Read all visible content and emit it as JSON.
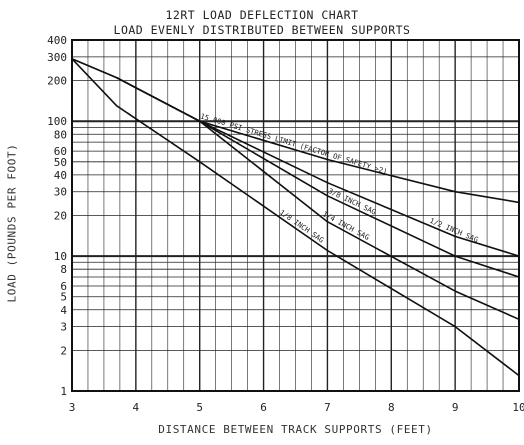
{
  "chart_data": {
    "type": "line",
    "title": "12RT LOAD DEFLECTION CHART",
    "subtitle": "LOAD EVENLY DISTRIBUTED BETWEEN SUPPORTS",
    "xlabel": "DISTANCE BETWEEN TRACK SUPPORTS (FEET)",
    "ylabel": "LOAD (POUNDS PER FOOT)",
    "x_scale": "linear",
    "y_scale": "log",
    "xlim": [
      3,
      10
    ],
    "ylim": [
      1,
      400
    ],
    "x_ticks": [
      "3",
      "4",
      "5",
      "6",
      "7",
      "8",
      "9",
      "10"
    ],
    "y_ticks": [
      {
        "value": 400,
        "label": "400"
      },
      {
        "value": 300,
        "label": "300"
      },
      {
        "value": 200,
        "label": "200"
      },
      {
        "value": 100,
        "label": "100"
      },
      {
        "value": 80,
        "label": "80"
      },
      {
        "value": 60,
        "label": "60"
      },
      {
        "value": 50,
        "label": "50"
      },
      {
        "value": 40,
        "label": "40"
      },
      {
        "value": 30,
        "label": "30"
      },
      {
        "value": 20,
        "label": "20"
      },
      {
        "value": 10,
        "label": "10"
      },
      {
        "value": 8,
        "label": "8"
      },
      {
        "value": 6,
        "label": "6"
      },
      {
        "value": 5,
        "label": "5"
      },
      {
        "value": 4,
        "label": "4"
      },
      {
        "value": 3,
        "label": "3"
      },
      {
        "value": 2,
        "label": "2"
      },
      {
        "value": 1,
        "label": "1"
      }
    ],
    "grid": true,
    "series": [
      {
        "name": "15,000 PSI STRESS LIMIT (FACTOR OF SAFETY >2)",
        "x": [
          3,
          3.7,
          5,
          7,
          9,
          10
        ],
        "y": [
          290,
          210,
          100,
          52,
          30,
          25
        ]
      },
      {
        "name": "1/2 INCH SAG",
        "x": [
          3,
          3.7,
          5,
          7,
          9,
          10
        ],
        "y": [
          290,
          210,
          100,
          35,
          14,
          10
        ]
      },
      {
        "name": "3/8 INCH SAG",
        "x": [
          3.7,
          5,
          7,
          9,
          10
        ],
        "y": [
          210,
          100,
          28,
          10,
          7
        ]
      },
      {
        "name": "1/4 INCH SAG",
        "x": [
          3.7,
          5,
          7,
          9,
          10
        ],
        "y": [
          210,
          100,
          18,
          5.5,
          3.4
        ]
      },
      {
        "name": "1/8 INCH SAG",
        "x": [
          3,
          3.7,
          5,
          7,
          9,
          10
        ],
        "y": [
          290,
          130,
          50,
          11,
          3,
          1.3
        ]
      }
    ],
    "annotations": [
      {
        "text": "15,000 PSI STRESS LIMIT (FACTOR OF SAFETY >2)",
        "series": 0
      },
      {
        "text": "1/2 INCH SAG",
        "series": 1
      },
      {
        "text": "3/8 INCH SAG",
        "series": 2
      },
      {
        "text": "1/4 INCH SAG",
        "series": 3
      },
      {
        "text": "1/8 INCH SAG",
        "series": 4
      }
    ]
  }
}
